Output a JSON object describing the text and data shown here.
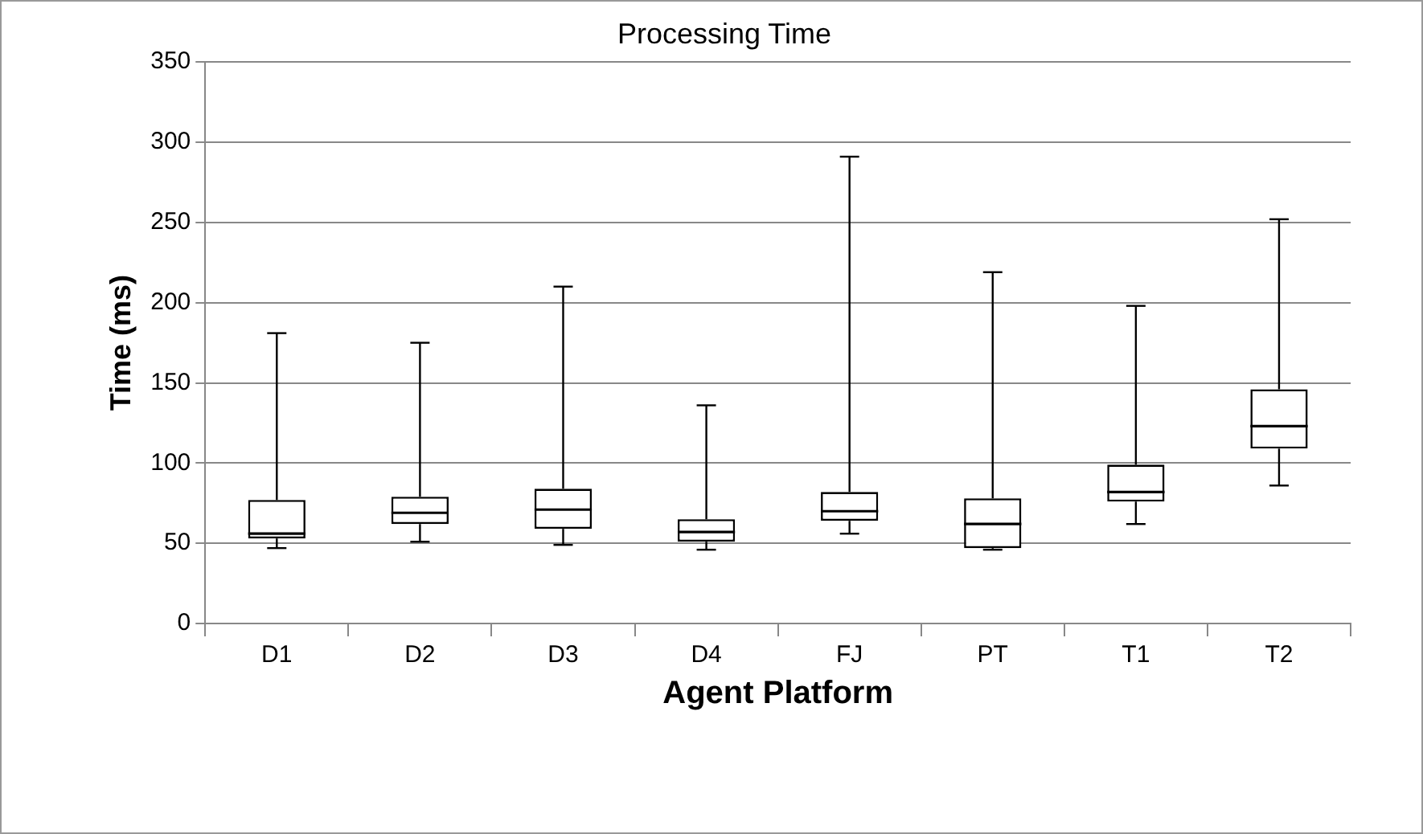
{
  "chart_data": {
    "type": "box",
    "title": "Processing Time",
    "xlabel": "Agent Platform",
    "ylabel": "Time (ms)",
    "categories": [
      "D1",
      "D2",
      "D3",
      "D4",
      "FJ",
      "PT",
      "T1",
      "T2"
    ],
    "boxes": [
      {
        "low": 47,
        "q1": 53,
        "median": 56,
        "q3": 77,
        "high": 181
      },
      {
        "low": 51,
        "q1": 62,
        "median": 69,
        "q3": 79,
        "high": 175
      },
      {
        "low": 49,
        "q1": 59,
        "median": 71,
        "q3": 84,
        "high": 210
      },
      {
        "low": 46,
        "q1": 51,
        "median": 57,
        "q3": 65,
        "high": 136
      },
      {
        "low": 56,
        "q1": 64,
        "median": 70,
        "q3": 82,
        "high": 291
      },
      {
        "low": 46,
        "q1": 47,
        "median": 62,
        "q3": 78,
        "high": 219
      },
      {
        "low": 62,
        "q1": 76,
        "median": 82,
        "q3": 99,
        "high": 198
      },
      {
        "low": 86,
        "q1": 109,
        "median": 123,
        "q3": 146,
        "high": 252
      }
    ],
    "ylim": [
      0,
      350
    ],
    "yticks": [
      0,
      50,
      100,
      150,
      200,
      250,
      300,
      350
    ],
    "grid": "y"
  }
}
